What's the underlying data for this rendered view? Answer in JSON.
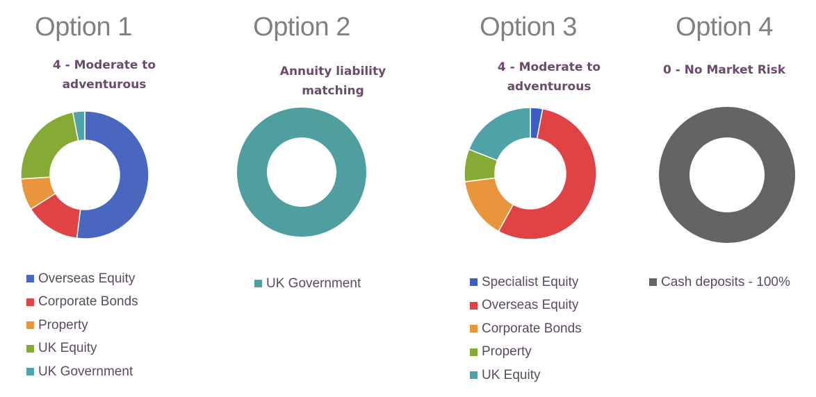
{
  "chart_data": [
    {
      "type": "pie",
      "title": "Option 1",
      "subtitle": "4 - Moderate to adventurous",
      "labels": [
        "Overseas Equity",
        "Corporate Bonds",
        "Property",
        "UK Equity",
        "UK Government"
      ],
      "values": [
        52,
        14,
        8,
        23,
        3
      ],
      "colors": [
        "#4a67c0",
        "#e04343",
        "#e8953c",
        "#86ab34",
        "#4fa3a7"
      ],
      "legend": "bottom"
    },
    {
      "type": "pie",
      "title": "Option 2",
      "subtitle": "Annuity liability matching",
      "labels": [
        "UK Government"
      ],
      "values": [
        100
      ],
      "colors": [
        "#4f9fa0"
      ],
      "legend": "bottom"
    },
    {
      "type": "pie",
      "title": "Option 3",
      "subtitle": "4 - Moderate to adventurous",
      "labels": [
        "Specialist Equity",
        "Overseas Equity",
        "Corporate Bonds",
        "Property",
        "UK Equity"
      ],
      "values": [
        3,
        55,
        15,
        8,
        19
      ],
      "colors": [
        "#3d5fbf",
        "#e04343",
        "#e8953c",
        "#86ab34",
        "#4fa3a7"
      ],
      "legend": "bottom"
    },
    {
      "type": "pie",
      "title": "Option 4",
      "subtitle": "0 - No Market Risk",
      "labels": [
        "Cash deposits - 100%"
      ],
      "values": [
        100
      ],
      "colors": [
        "#646464"
      ],
      "legend": "bottom"
    }
  ]
}
